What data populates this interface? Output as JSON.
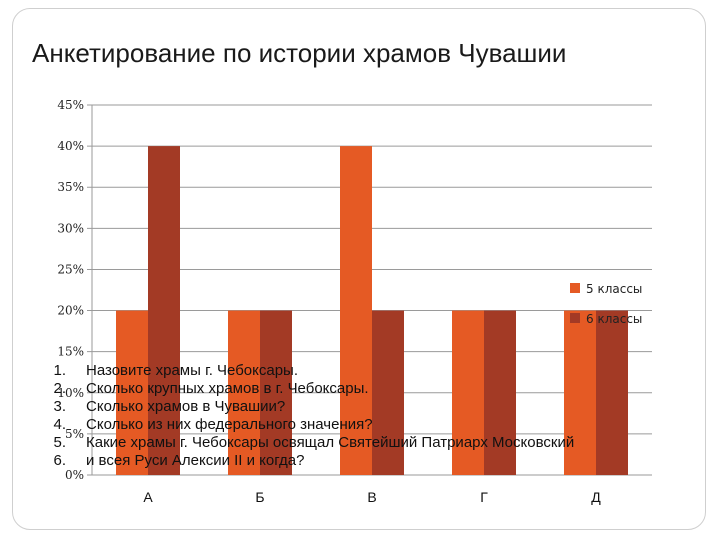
{
  "title": "Анкетирование по истории храмов Чувашии",
  "colors": {
    "series_5": "#e55a24",
    "series_6": "#a33a25",
    "grid": "#9a9a9a",
    "axis": "#9a9a9a"
  },
  "chart_data": {
    "type": "bar",
    "categories": [
      "А",
      "Б",
      "В",
      "Г",
      "Д"
    ],
    "series": [
      {
        "name": "5 классы",
        "values": [
          20,
          20,
          40,
          20,
          20
        ]
      },
      {
        "name": "6 классы",
        "values": [
          40,
          20,
          20,
          20,
          20
        ]
      }
    ],
    "yticks": [
      "0%",
      "5%",
      "10%",
      "15%",
      "20%",
      "25%",
      "30%",
      "35%",
      "40%",
      "45%"
    ],
    "ylim": [
      0,
      45
    ],
    "unit": "%",
    "grid": true,
    "legend": "right"
  },
  "questions": [
    {
      "num": "1.",
      "text": "Назовите храмы г. Чебоксары."
    },
    {
      "num": "2.",
      "text": "Сколько крупных храмов в г. Чебоксары."
    },
    {
      "num": "3.",
      "text": "Сколько храмов в Чувашии?"
    },
    {
      "num": "4.",
      "text": "Сколько из них федерального значения?"
    },
    {
      "num": "5.",
      "text": "Какие храмы г. Чебоксары освящал Святейший Патриарх Московский"
    },
    {
      "num": "6.",
      "text": "и всея Руси Алексии II и когда?"
    }
  ]
}
